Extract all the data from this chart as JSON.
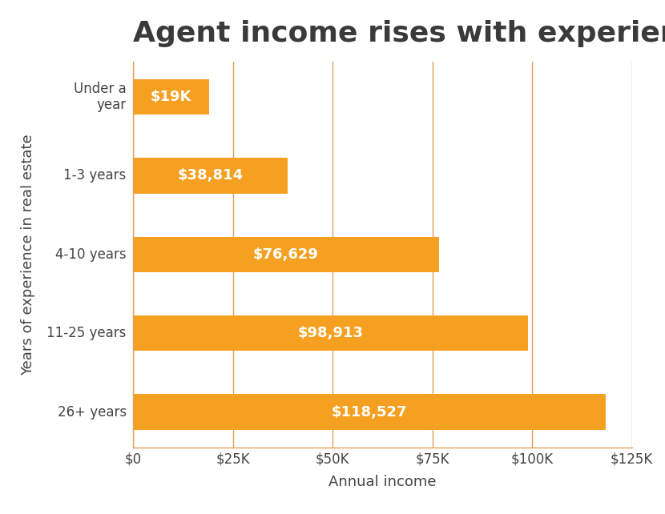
{
  "title": "Agent income rises with experience",
  "categories": [
    "Under a\nyear",
    "1-3 years",
    "4-10 years",
    "11-25 years",
    "26+ years"
  ],
  "values": [
    19000,
    38814,
    76629,
    98913,
    118527
  ],
  "labels": [
    "$19K",
    "$38,814",
    "$76,629",
    "$98,913",
    "$118,527"
  ],
  "bar_color": "#F5A020",
  "xlabel": "Annual income",
  "ylabel": "Years of experience in real estate",
  "xlim": [
    0,
    125000
  ],
  "xticks": [
    0,
    25000,
    50000,
    75000,
    100000,
    125000
  ],
  "xtick_labels": [
    "$0",
    "$25K",
    "$50K",
    "$75K",
    "$100K",
    "$125K"
  ],
  "background_color": "#ffffff",
  "title_fontsize": 26,
  "title_color": "#3a3a3a",
  "label_fontsize": 13,
  "tick_fontsize": 12,
  "ylabel_fontsize": 13,
  "xlabel_fontsize": 13,
  "bar_height": 0.45,
  "grid_color": "#E0A060",
  "spine_color": "#E0A060"
}
